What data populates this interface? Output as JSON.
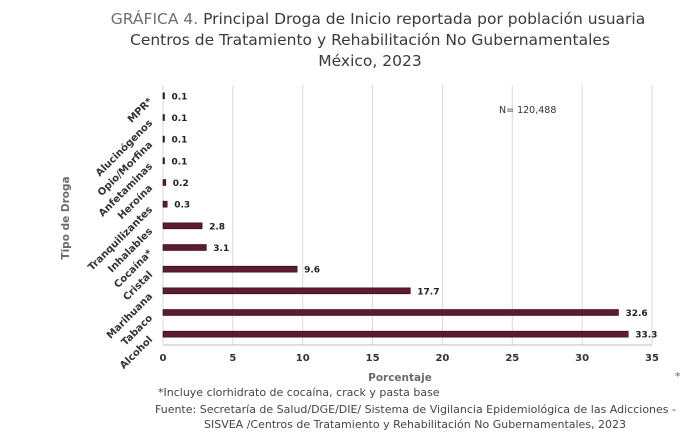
{
  "header": {
    "title_prefix": "GRÁFICA 4.",
    "title_line1": "Principal Droga de Inicio reportada por población usuaria",
    "title_line2": "Centros de Tratamiento y Rehabilitación No Gubernamentales",
    "title_line3": "México, 2023"
  },
  "footer": {
    "footnote": "*Incluye clorhidrato de cocaína, crack y pasta base",
    "source_line1": "Fuente: Secretaría de Salud/DGE/DIE/ Sistema de Vigilancia Epidemiológica de las Adicciones -",
    "source_line2": "SISVEA /Centros de Tratamiento y Rehabilitación No Gubernamentales, 2023",
    "stray_mark": "*"
  },
  "chart_data": {
    "type": "bar",
    "orientation": "horizontal",
    "title": "Principal Droga de Inicio reportada por población usuaria",
    "xlabel": "Porcentaje",
    "ylabel": "Tipo de Droga",
    "annotation": "N= 120,488",
    "categories": [
      "MPR*",
      "Alucinógenos",
      "Opio/Morfina",
      "Anfetaminas",
      "Heroína",
      "Tranquilizantes",
      "Inhalables",
      "Cocaína*",
      "Cristal",
      "Marihuana",
      "Tabaco",
      "Alcohol"
    ],
    "values": [
      0.1,
      0.1,
      0.1,
      0.1,
      0.2,
      0.3,
      2.8,
      3.1,
      9.6,
      17.7,
      32.6,
      33.3
    ],
    "value_labels": [
      "0.1",
      "0.1",
      "0.1",
      "0.1",
      "0.2",
      "0.3",
      "2.8",
      "3.1",
      "9.6",
      "17.7",
      "32.6",
      "33.3"
    ],
    "xlim": [
      0,
      35
    ],
    "xticks": [
      0,
      5,
      10,
      15,
      20,
      25,
      30,
      35
    ],
    "xtick_labels": [
      "0",
      "5",
      "10",
      "15",
      "20",
      "25",
      "30",
      "35"
    ],
    "grid": "vertical",
    "legend": "none",
    "bar_color": "#5c1a33"
  }
}
